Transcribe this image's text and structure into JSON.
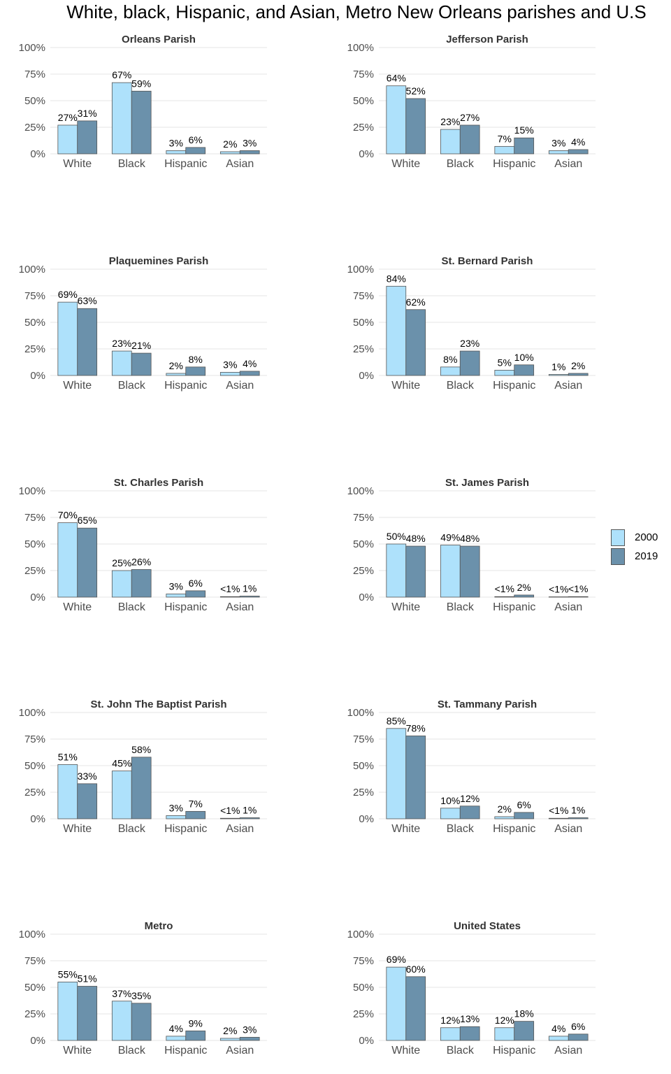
{
  "title": "White, black, Hispanic, and Asian, Metro New Orleans parishes and U.S",
  "legend": [
    {
      "label": "2000",
      "color": "#aee1fb"
    },
    {
      "label": "2019",
      "color": "#6b91ab"
    }
  ],
  "chart_data": [
    {
      "type": "bar",
      "title": "Orleans Parish",
      "categories": [
        "White",
        "Black",
        "Hispanic",
        "Asian"
      ],
      "yticks": [
        "0%",
        "25%",
        "50%",
        "75%",
        "100%"
      ],
      "ylim": [
        0,
        100
      ],
      "series": [
        {
          "name": "2000",
          "values": [
            27,
            67,
            3,
            2
          ],
          "labels": [
            "27%",
            "67%",
            "3%",
            "2%"
          ]
        },
        {
          "name": "2019",
          "values": [
            31,
            59,
            6,
            3
          ],
          "labels": [
            "31%",
            "59%",
            "6%",
            "3%"
          ]
        }
      ]
    },
    {
      "type": "bar",
      "title": "Jefferson Parish",
      "categories": [
        "White",
        "Black",
        "Hispanic",
        "Asian"
      ],
      "yticks": [
        "0%",
        "25%",
        "50%",
        "75%",
        "100%"
      ],
      "ylim": [
        0,
        100
      ],
      "series": [
        {
          "name": "2000",
          "values": [
            64,
            23,
            7,
            3
          ],
          "labels": [
            "64%",
            "23%",
            "7%",
            "3%"
          ]
        },
        {
          "name": "2019",
          "values": [
            52,
            27,
            15,
            4
          ],
          "labels": [
            "52%",
            "27%",
            "15%",
            "4%"
          ]
        }
      ]
    },
    {
      "type": "bar",
      "title": "Plaquemines Parish",
      "categories": [
        "White",
        "Black",
        "Hispanic",
        "Asian"
      ],
      "yticks": [
        "0%",
        "25%",
        "50%",
        "75%",
        "100%"
      ],
      "ylim": [
        0,
        100
      ],
      "series": [
        {
          "name": "2000",
          "values": [
            69,
            23,
            2,
            3
          ],
          "labels": [
            "69%",
            "23%",
            "2%",
            "3%"
          ]
        },
        {
          "name": "2019",
          "values": [
            63,
            21,
            8,
            4
          ],
          "labels": [
            "63%",
            "21%",
            "8%",
            "4%"
          ]
        }
      ]
    },
    {
      "type": "bar",
      "title": "St. Bernard Parish",
      "categories": [
        "White",
        "Black",
        "Hispanic",
        "Asian"
      ],
      "yticks": [
        "0%",
        "25%",
        "50%",
        "75%",
        "100%"
      ],
      "ylim": [
        0,
        100
      ],
      "series": [
        {
          "name": "2000",
          "values": [
            84,
            8,
            5,
            1
          ],
          "labels": [
            "84%",
            "8%",
            "5%",
            "1%"
          ]
        },
        {
          "name": "2019",
          "values": [
            62,
            23,
            10,
            2
          ],
          "labels": [
            "62%",
            "23%",
            "10%",
            "2%"
          ]
        }
      ]
    },
    {
      "type": "bar",
      "title": "St. Charles Parish",
      "categories": [
        "White",
        "Black",
        "Hispanic",
        "Asian"
      ],
      "yticks": [
        "0%",
        "25%",
        "50%",
        "75%",
        "100%"
      ],
      "ylim": [
        0,
        100
      ],
      "series": [
        {
          "name": "2000",
          "values": [
            70,
            25,
            3,
            0.5
          ],
          "labels": [
            "70%",
            "25%",
            "3%",
            "<1%"
          ]
        },
        {
          "name": "2019",
          "values": [
            65,
            26,
            6,
            1
          ],
          "labels": [
            "65%",
            "26%",
            "6%",
            "1%"
          ]
        }
      ]
    },
    {
      "type": "bar",
      "title": "St. James Parish",
      "categories": [
        "White",
        "Black",
        "Hispanic",
        "Asian"
      ],
      "yticks": [
        "0%",
        "25%",
        "50%",
        "75%",
        "100%"
      ],
      "ylim": [
        0,
        100
      ],
      "series": [
        {
          "name": "2000",
          "values": [
            50,
            49,
            0.5,
            0.3
          ],
          "labels": [
            "50%",
            "49%",
            "<1%",
            "<1%"
          ]
        },
        {
          "name": "2019",
          "values": [
            48,
            48,
            2,
            0.5
          ],
          "labels": [
            "48%",
            "48%",
            "2%",
            "<1%"
          ]
        }
      ]
    },
    {
      "type": "bar",
      "title": "St. John The Baptist Parish",
      "categories": [
        "White",
        "Black",
        "Hispanic",
        "Asian"
      ],
      "yticks": [
        "0%",
        "25%",
        "50%",
        "75%",
        "100%"
      ],
      "ylim": [
        0,
        100
      ],
      "series": [
        {
          "name": "2000",
          "values": [
            51,
            45,
            3,
            0.5
          ],
          "labels": [
            "51%",
            "45%",
            "3%",
            "<1%"
          ]
        },
        {
          "name": "2019",
          "values": [
            33,
            58,
            7,
            1
          ],
          "labels": [
            "33%",
            "58%",
            "7%",
            "1%"
          ]
        }
      ]
    },
    {
      "type": "bar",
      "title": "St. Tammany Parish",
      "categories": [
        "White",
        "Black",
        "Hispanic",
        "Asian"
      ],
      "yticks": [
        "0%",
        "25%",
        "50%",
        "75%",
        "100%"
      ],
      "ylim": [
        0,
        100
      ],
      "series": [
        {
          "name": "2000",
          "values": [
            85,
            10,
            2,
            0.5
          ],
          "labels": [
            "85%",
            "10%",
            "2%",
            "<1%"
          ]
        },
        {
          "name": "2019",
          "values": [
            78,
            12,
            6,
            1
          ],
          "labels": [
            "78%",
            "12%",
            "6%",
            "1%"
          ]
        }
      ]
    },
    {
      "type": "bar",
      "title": "Metro",
      "categories": [
        "White",
        "Black",
        "Hispanic",
        "Asian"
      ],
      "yticks": [
        "0%",
        "25%",
        "50%",
        "75%",
        "100%"
      ],
      "ylim": [
        0,
        100
      ],
      "series": [
        {
          "name": "2000",
          "values": [
            55,
            37,
            4,
            2
          ],
          "labels": [
            "55%",
            "37%",
            "4%",
            "2%"
          ]
        },
        {
          "name": "2019",
          "values": [
            51,
            35,
            9,
            3
          ],
          "labels": [
            "51%",
            "35%",
            "9%",
            "3%"
          ]
        }
      ]
    },
    {
      "type": "bar",
      "title": "United States",
      "categories": [
        "White",
        "Black",
        "Hispanic",
        "Asian"
      ],
      "yticks": [
        "0%",
        "25%",
        "50%",
        "75%",
        "100%"
      ],
      "ylim": [
        0,
        100
      ],
      "series": [
        {
          "name": "2000",
          "values": [
            69,
            12,
            12,
            4
          ],
          "labels": [
            "69%",
            "12%",
            "12%",
            "4%"
          ]
        },
        {
          "name": "2019",
          "values": [
            60,
            13,
            18,
            6
          ],
          "labels": [
            "60%",
            "13%",
            "18%",
            "6%"
          ]
        }
      ]
    }
  ]
}
